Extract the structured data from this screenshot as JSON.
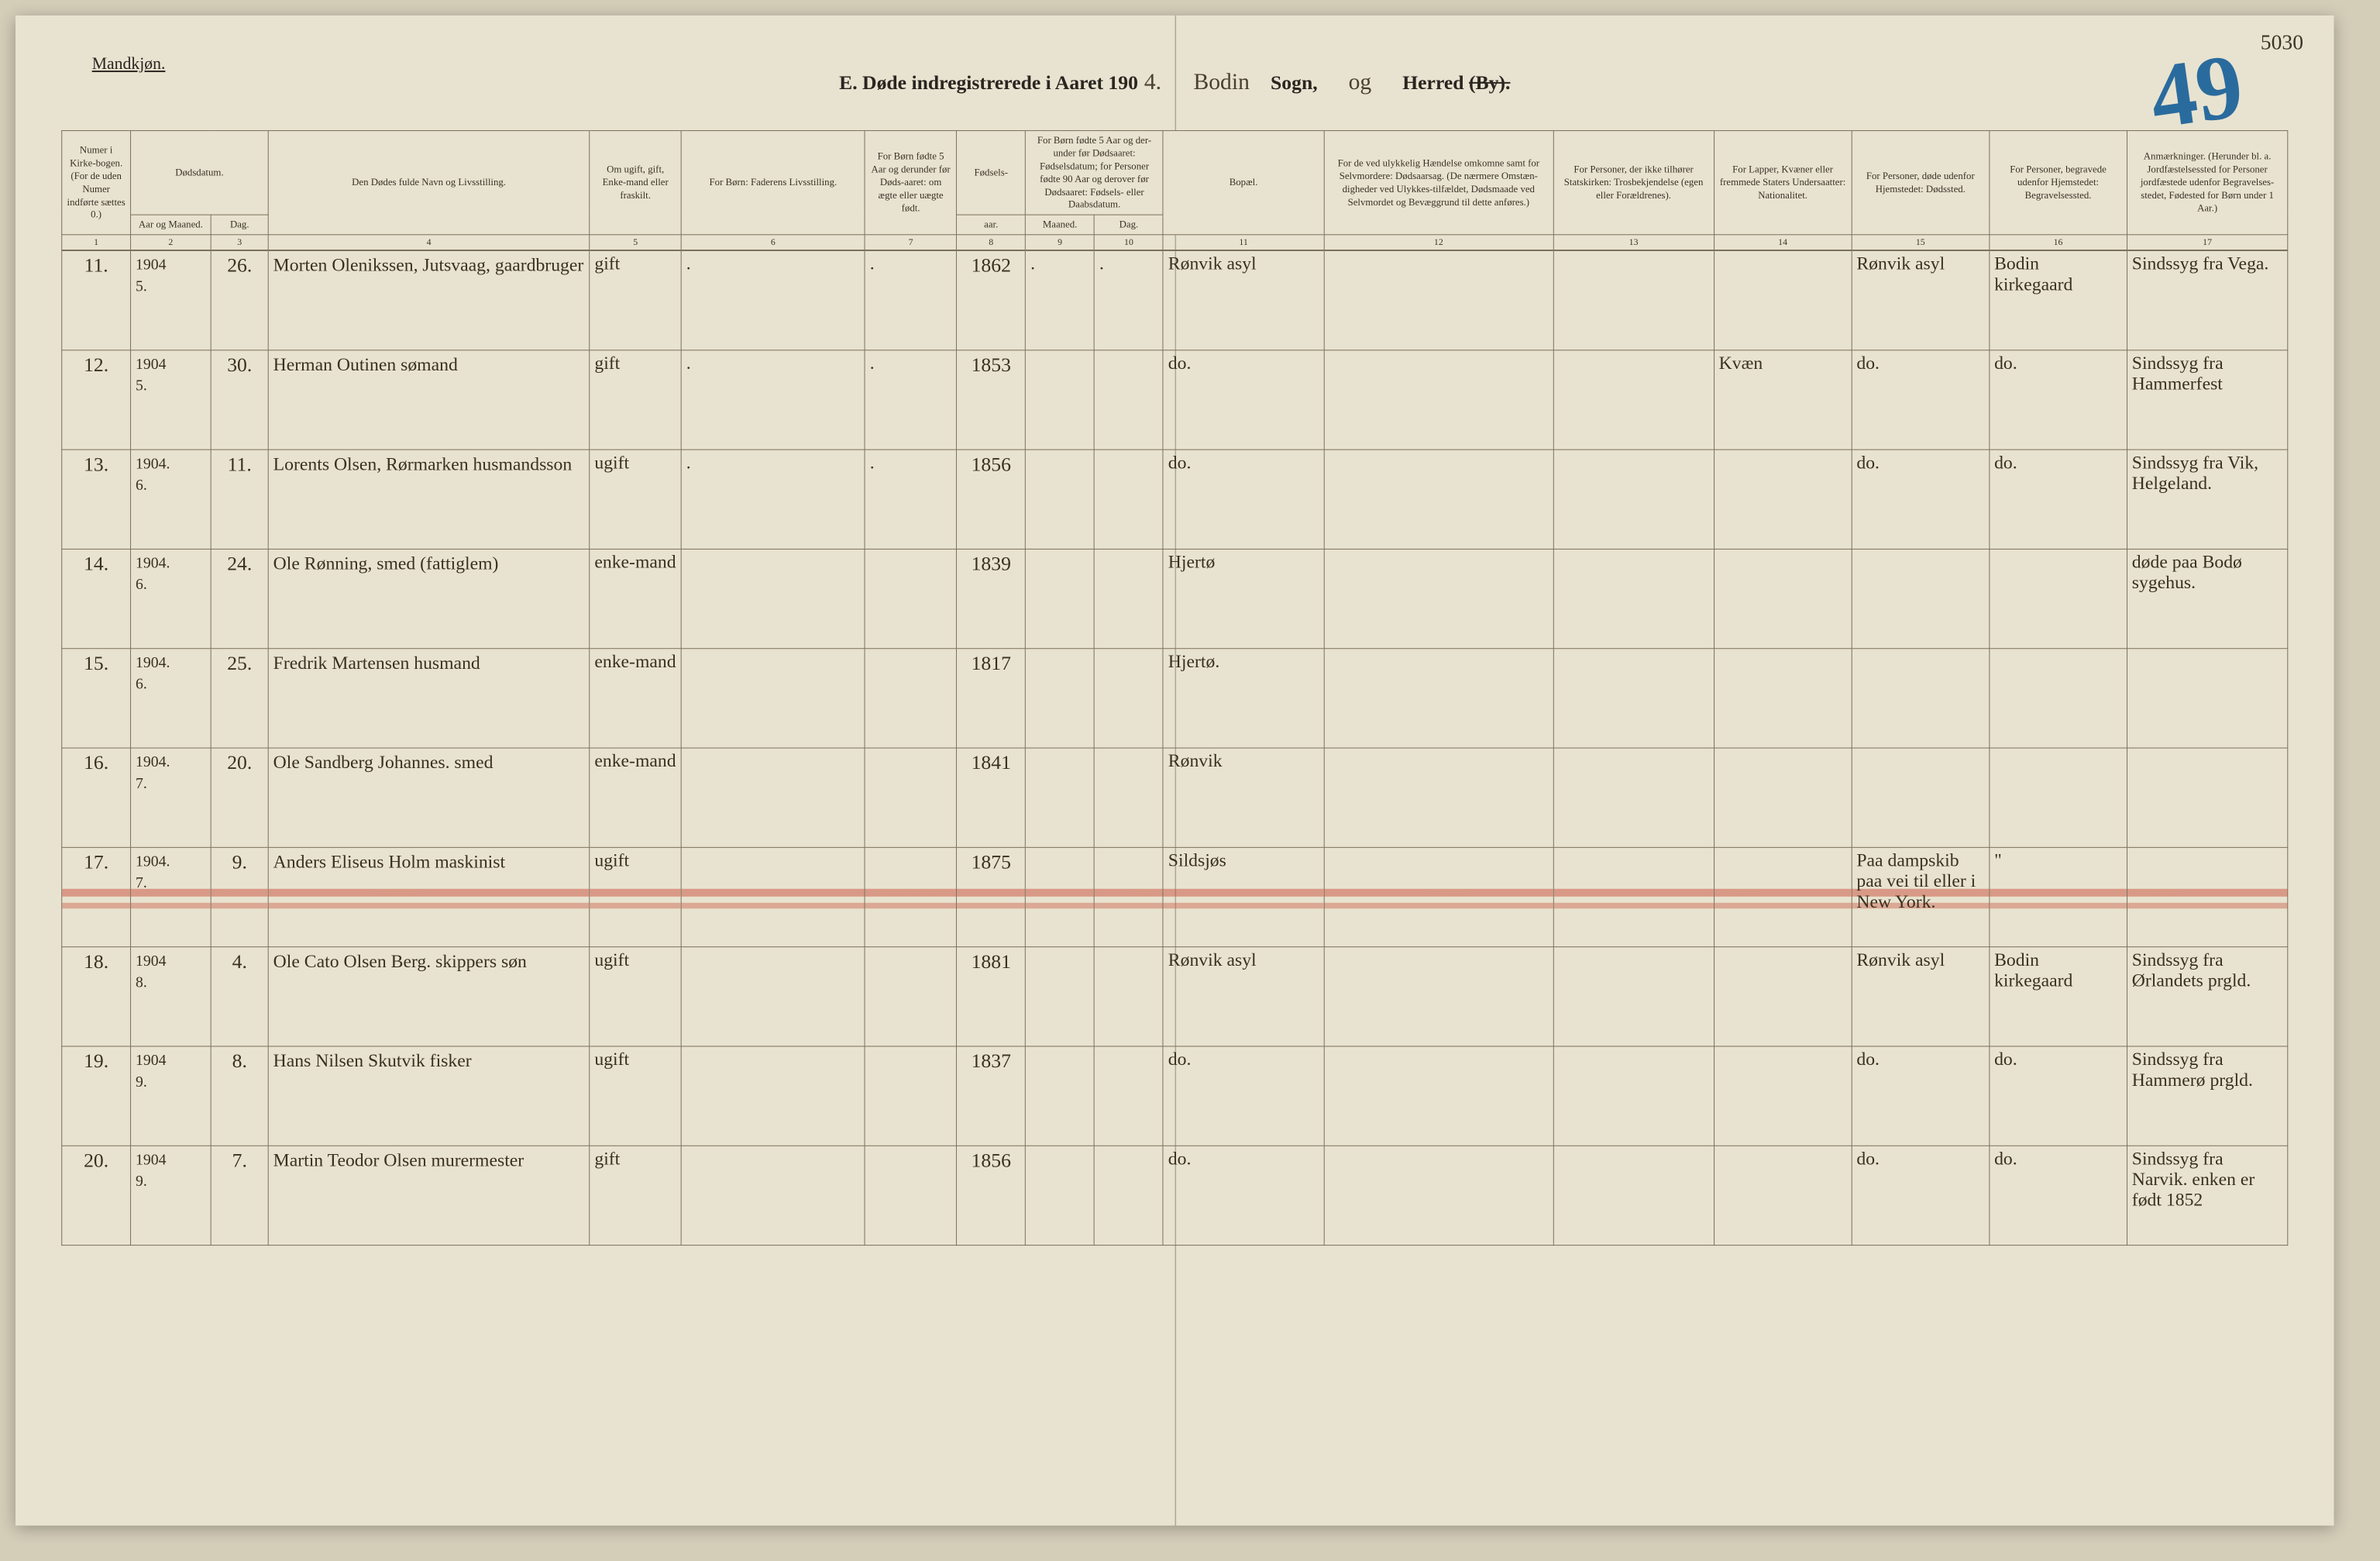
{
  "corner_number": "5030",
  "big_blue_number": "49",
  "gender_label": "Mandkjøn.",
  "title": {
    "prefix": "E.  Døde indregistrerede i Aaret 190",
    "year_suffix": "4.",
    "parish_hand": "Bodin",
    "parish_label": "Sogn,",
    "og_hand": "og",
    "herred_label": "Herred",
    "by_label": "(By)."
  },
  "headers": {
    "c1": "Numer i Kirke-bogen. (For de uden Numer indførte sættes 0.)",
    "c2a": "Dødsdatum.",
    "c2b": "Aar og Maaned.",
    "c3": "Dag.",
    "c4": "Den Dødes fulde Navn og Livsstilling.",
    "c5": "Om ugift, gift, Enke-mand eller fraskilt.",
    "c6": "For Børn: Faderens Livsstilling.",
    "c7": "For Børn fødte 5 Aar og derunder før Døds-aaret: om ægte eller uægte født.",
    "c8a": "Fødsels-",
    "c8b": "aar.",
    "c9": "For Børn fødte 5 Aar og der-under før Dødsaaret: Fødselsdatum; for Personer fødte 90 Aar og derover før Dødsaaret: Fødsels- eller Daabsdatum.",
    "c9a": "Maaned.",
    "c9b": "Dag.",
    "c11": "Bopæl.",
    "c12": "For de ved ulykkelig Hændelse omkomne samt for Selvmordere: Dødsaarsag. (De nærmere Omstæn-digheder ved Ulykkes-tilfældet, Dødsmaade ved Selvmordet og Bevæggrund til dette anføres.)",
    "c13": "For Personer, der ikke tilhører Statskirken: Trosbekjendelse (egen eller Forældrenes).",
    "c14": "For Lapper, Kvæner eller fremmede Staters Undersaatter: Nationalitet.",
    "c15": "For Personer, døde udenfor Hjemstedet: Dødssted.",
    "c16": "For Personer, begravede udenfor Hjemstedet: Begravelsessted.",
    "c17": "Anmærkninger. (Herunder bl. a. Jordfæstelsessted for Personer jordfæstede udenfor Begravelses-stedet, Fødested for Børn under 1 Aar.)"
  },
  "colnums": [
    "1",
    "2",
    "3",
    "4",
    "5",
    "6",
    "7",
    "8",
    "9",
    "10",
    "11",
    "12",
    "13",
    "14",
    "15",
    "16",
    "17"
  ],
  "rows": [
    {
      "n": "11.",
      "ym": "1904\n5.",
      "d": "26.",
      "name": "Morten Olenikssen, Jutsvaag, gaardbruger",
      "status": "gift",
      "c6": ".",
      "c7": ".",
      "fy": "1862",
      "m": ".",
      "dg": ".",
      "res": "Rønvik asyl",
      "c12": "",
      "c13": "",
      "c14": "",
      "c15": "Rønvik asyl",
      "c16": "Bodin kirkegaard",
      "c17": "Sindssyg fra Vega.",
      "struck": false
    },
    {
      "n": "12.",
      "ym": "1904\n5.",
      "d": "30.",
      "name": "Herman Outinen sømand",
      "status": "gift",
      "c6": ".",
      "c7": ".",
      "fy": "1853",
      "m": "",
      "dg": "",
      "res": "do.",
      "c12": "",
      "c13": "",
      "c14": "Kvæn",
      "c15": "do.",
      "c16": "do.",
      "c17": "Sindssyg fra Hammerfest",
      "struck": false
    },
    {
      "n": "13.",
      "ym": "1904.\n6.",
      "d": "11.",
      "name": "Lorents Olsen, Rørmarken husmandsson",
      "status": "ugift",
      "c6": ".",
      "c7": ".",
      "fy": "1856",
      "m": "",
      "dg": "",
      "res": "do.",
      "c12": "",
      "c13": "",
      "c14": "",
      "c15": "do.",
      "c16": "do.",
      "c17": "Sindssyg fra Vik, Helgeland.",
      "struck": false
    },
    {
      "n": "14.",
      "ym": "1904.\n6.",
      "d": "24.",
      "name": "Ole Rønning, smed (fattiglem)",
      "status": "enke-mand",
      "c6": "",
      "c7": "",
      "fy": "1839",
      "m": "",
      "dg": "",
      "res": "Hjertø",
      "c12": "",
      "c13": "",
      "c14": "",
      "c15": "",
      "c16": "",
      "c17": "døde paa Bodø sygehus.",
      "struck": false
    },
    {
      "n": "15.",
      "ym": "1904.\n6.",
      "d": "25.",
      "name": "Fredrik Martensen husmand",
      "status": "enke-mand",
      "c6": "",
      "c7": "",
      "fy": "1817",
      "m": "",
      "dg": "",
      "res": "Hjertø.",
      "c12": "",
      "c13": "",
      "c14": "",
      "c15": "",
      "c16": "",
      "c17": "",
      "struck": false
    },
    {
      "n": "16.",
      "ym": "1904.\n7.",
      "d": "20.",
      "name": "Ole Sandberg Johannes. smed",
      "status": "enke-mand",
      "c6": "",
      "c7": "",
      "fy": "1841",
      "m": "",
      "dg": "",
      "res": "Rønvik",
      "c12": "",
      "c13": "",
      "c14": "",
      "c15": "",
      "c16": "",
      "c17": "",
      "struck": false
    },
    {
      "n": "17.",
      "ym": "1904.\n7.",
      "d": "9.",
      "name": "Anders Eliseus Holm maskinist",
      "status": "ugift",
      "c6": "",
      "c7": "",
      "fy": "1875",
      "m": "",
      "dg": "",
      "res": "Sildsjøs",
      "c12": "",
      "c13": "",
      "c14": "",
      "c15": "Paa dampskib paa vei til eller i New York.",
      "c16": "\"",
      "c17": "",
      "struck": true
    },
    {
      "n": "18.",
      "ym": "1904\n8.",
      "d": "4.",
      "name": "Ole Cato Olsen Berg. skippers søn",
      "status": "ugift",
      "c6": "",
      "c7": "",
      "fy": "1881",
      "m": "",
      "dg": "",
      "res": "Rønvik asyl",
      "c12": "",
      "c13": "",
      "c14": "",
      "c15": "Rønvik asyl",
      "c16": "Bodin kirkegaard",
      "c17": "Sindssyg fra Ørlandets prgld.",
      "struck": false
    },
    {
      "n": "19.",
      "ym": "1904\n9.",
      "d": "8.",
      "name": "Hans Nilsen Skutvik fisker",
      "status": "ugift",
      "c6": "",
      "c7": "",
      "fy": "1837",
      "m": "",
      "dg": "",
      "res": "do.",
      "c12": "",
      "c13": "",
      "c14": "",
      "c15": "do.",
      "c16": "do.",
      "c17": "Sindssyg fra Hammerø prgld.",
      "struck": false
    },
    {
      "n": "20.",
      "ym": "1904\n9.",
      "d": "7.",
      "name": "Martin Teodor Olsen murermester",
      "status": "gift",
      "c6": "",
      "c7": "",
      "fy": "1856",
      "m": "",
      "dg": "",
      "res": "do.",
      "c12": "",
      "c13": "",
      "c14": "",
      "c15": "do.",
      "c16": "do.",
      "c17": "Sindssyg fra Narvik. enken er født 1852",
      "struck": false
    }
  ]
}
